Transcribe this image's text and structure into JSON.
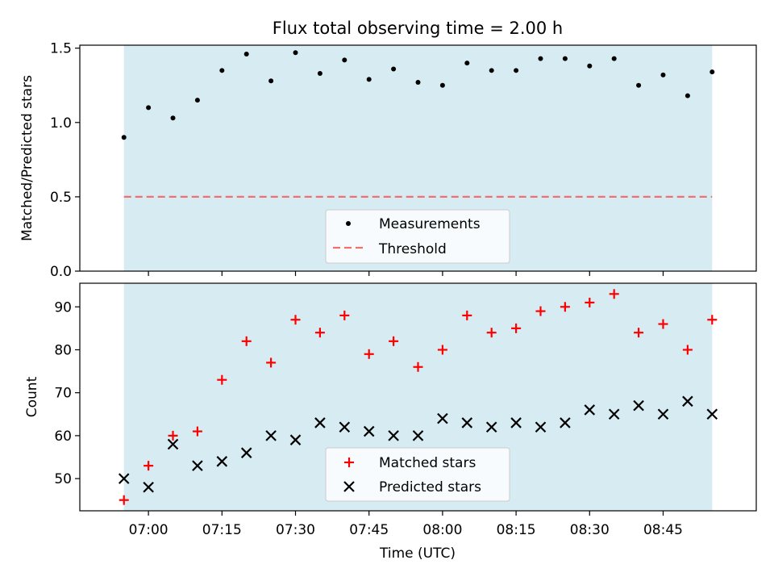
{
  "chart_data": [
    {
      "type": "scatter",
      "title": "Flux total observing time = 2.00 h",
      "ylabel": "Matched/Predicted stars",
      "xlabel": "",
      "ylim": [
        0,
        1.52
      ],
      "yticks": [
        0.0,
        0.5,
        1.0,
        1.5
      ],
      "ytick_labels": [
        "0.0",
        "0.5",
        "1.0",
        "1.5"
      ],
      "x_times": [
        "06:55",
        "07:00",
        "07:05",
        "07:10",
        "07:15",
        "07:20",
        "07:25",
        "07:30",
        "07:35",
        "07:40",
        "07:45",
        "07:50",
        "07:55",
        "08:00",
        "08:05",
        "08:10",
        "08:15",
        "08:20",
        "08:25",
        "08:30",
        "08:35",
        "08:40",
        "08:45",
        "08:50",
        "08:55"
      ],
      "series": [
        {
          "name": "Measurements",
          "marker": "dot",
          "color": "#000000",
          "values": [
            0.9,
            1.1,
            1.03,
            1.15,
            1.35,
            1.46,
            1.28,
            1.47,
            1.33,
            1.42,
            1.29,
            1.36,
            1.27,
            1.25,
            1.4,
            1.35,
            1.35,
            1.43,
            1.43,
            1.38,
            1.43,
            1.25,
            1.32,
            1.18,
            1.34
          ]
        },
        {
          "name": "Threshold",
          "marker": "dashed-line",
          "color": "#f07070",
          "value": 0.5
        }
      ],
      "shaded_span": [
        "06:55",
        "08:55"
      ],
      "shade_color": "#add8e6",
      "legend_position": "lower center"
    },
    {
      "type": "scatter",
      "title": "",
      "ylabel": "Count",
      "xlabel": "Time (UTC)",
      "ylim": [
        42.5,
        95.5
      ],
      "yticks": [
        50,
        60,
        70,
        80,
        90
      ],
      "ytick_labels": [
        "50",
        "60",
        "70",
        "80",
        "90"
      ],
      "x_times": [
        "06:55",
        "07:00",
        "07:05",
        "07:10",
        "07:15",
        "07:20",
        "07:25",
        "07:30",
        "07:35",
        "07:40",
        "07:45",
        "07:50",
        "07:55",
        "08:00",
        "08:05",
        "08:10",
        "08:15",
        "08:20",
        "08:25",
        "08:30",
        "08:35",
        "08:40",
        "08:45",
        "08:50",
        "08:55"
      ],
      "series": [
        {
          "name": "Matched stars",
          "marker": "plus",
          "color": "#ff0000",
          "values": [
            45,
            53,
            60,
            61,
            73,
            82,
            77,
            87,
            84,
            88,
            79,
            82,
            76,
            80,
            88,
            84,
            85,
            89,
            90,
            91,
            93,
            84,
            86,
            80,
            87
          ]
        },
        {
          "name": "Predicted stars",
          "marker": "x",
          "color": "#000000",
          "values": [
            50,
            48,
            58,
            53,
            54,
            56,
            60,
            59,
            63,
            62,
            61,
            60,
            60,
            64,
            63,
            62,
            63,
            62,
            63,
            66,
            65,
            67,
            65,
            68,
            65
          ]
        }
      ],
      "shaded_span": [
        "06:55",
        "08:55"
      ],
      "shade_color": "#add8e6",
      "legend_position": "lower center"
    }
  ],
  "xaxis": {
    "xlim": [
      "06:46",
      "09:04"
    ],
    "tick_times": [
      "07:00",
      "07:15",
      "07:30",
      "07:45",
      "08:00",
      "08:15",
      "08:30",
      "08:45"
    ],
    "tick_labels": [
      "07:00",
      "07:15",
      "07:30",
      "07:45",
      "08:00",
      "08:15",
      "08:30",
      "08:45"
    ]
  }
}
